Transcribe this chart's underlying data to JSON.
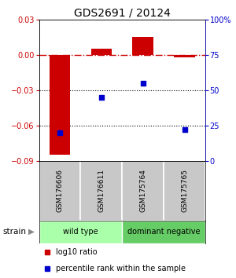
{
  "title": "GDS2691 / 20124",
  "samples": [
    "GSM176606",
    "GSM176611",
    "GSM175764",
    "GSM175765"
  ],
  "log10_ratio": [
    -0.085,
    0.005,
    0.015,
    -0.002
  ],
  "percentile_rank": [
    20,
    45,
    55,
    22
  ],
  "ylim_left": [
    -0.09,
    0.03
  ],
  "ylim_right": [
    0,
    100
  ],
  "yticks_left": [
    -0.09,
    -0.06,
    -0.03,
    0,
    0.03
  ],
  "yticks_right": [
    0,
    25,
    50,
    75,
    100
  ],
  "hline0_color": "#cc0000",
  "hlines_color": "black",
  "bar_color": "#cc0000",
  "dot_color": "#0000cc",
  "bar_width": 0.5,
  "strain_groups": [
    {
      "label": "wild type",
      "cols": [
        0,
        1
      ],
      "color": "#aaffaa"
    },
    {
      "label": "dominant negative",
      "cols": [
        2,
        3
      ],
      "color": "#66cc66"
    }
  ],
  "strain_label": "strain",
  "legend_bar_label": "log10 ratio",
  "legend_dot_label": "percentile rank within the sample",
  "left_tick_color": "#cc0000",
  "right_tick_color": "#0000cc",
  "sample_bg": "#c8c8c8",
  "bg_color": "#ffffff"
}
